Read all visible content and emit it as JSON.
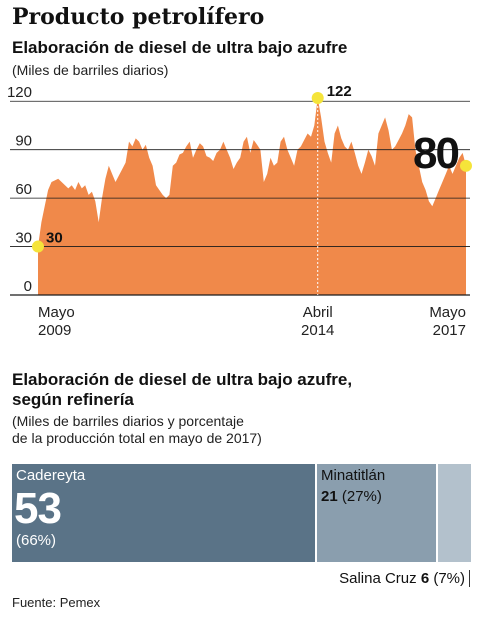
{
  "title": "Producto petrolífero",
  "chart1": {
    "title": "Elaboración de diesel de ultra bajo azufre",
    "subtitle": "(Miles de barriles diarios)"
  },
  "chart2": {
    "title_line1": "Elaboración de diesel de ultra bajo azufre,",
    "title_line2": "según refinería",
    "subtitle_line1": "(Miles de barriles diarios y porcentaje",
    "subtitle_line2": "de la producción total en mayo de 2017)"
  },
  "source": "Fuente: Pemex",
  "colors": {
    "area": "#f0894a",
    "refinery_dark": "#5a7387",
    "refinery_mid": "#8a9eae",
    "refinery_light": "#b3c1cc",
    "marker": "#f5e43a"
  },
  "chart_data": [
    {
      "type": "area",
      "title": "Elaboración de diesel de ultra bajo azufre",
      "ylabel": "(Miles de barriles diarios)",
      "ylim": [
        0,
        122
      ],
      "yticks": [
        0,
        30,
        60,
        90,
        120
      ],
      "x_ticks": [
        {
          "line1": "Mayo",
          "line2": "2009",
          "align": "start"
        },
        {
          "line1": "Abril",
          "line2": "2014",
          "align": "middle"
        },
        {
          "line1": "Mayo",
          "line2": "2017",
          "align": "end"
        }
      ],
      "annotations": [
        {
          "label": "30",
          "value": 30,
          "at": "May 2009"
        },
        {
          "label": "122",
          "value": 122,
          "at": "Apr 2014"
        },
        {
          "label": "80",
          "value": 80,
          "at": "May 2017"
        }
      ],
      "start": "2009-05",
      "end": "2017-05",
      "values": [
        30,
        45,
        55,
        65,
        70,
        71,
        72,
        70,
        68,
        66,
        68,
        65,
        70,
        66,
        68,
        62,
        64,
        58,
        45,
        60,
        72,
        80,
        75,
        70,
        74,
        78,
        82,
        95,
        92,
        97,
        95,
        90,
        93,
        85,
        80,
        68,
        65,
        62,
        60,
        62,
        80,
        82,
        87,
        88,
        92,
        95,
        85,
        90,
        94,
        92,
        86,
        85,
        83,
        88,
        90,
        95,
        90,
        85,
        78,
        82,
        85,
        95,
        98,
        88,
        96,
        93,
        90,
        70,
        75,
        85,
        80,
        82,
        95,
        98,
        90,
        85,
        80,
        90,
        92,
        96,
        100,
        98,
        105,
        122,
        110,
        95,
        88,
        82,
        100,
        105,
        97,
        92,
        90,
        95,
        88,
        80,
        75,
        82,
        90,
        86,
        80,
        100,
        105,
        110,
        102,
        90,
        92,
        96,
        100,
        105,
        112,
        110,
        90,
        80,
        70,
        65,
        58,
        55,
        60,
        65,
        70,
        75,
        80,
        75,
        80,
        85,
        88,
        80
      ],
      "grid": true
    },
    {
      "type": "bar",
      "orientation": "horizontal-stacked",
      "categories": [
        "Cadereyta",
        "Minatitlán",
        "Salina Cruz"
      ],
      "values": [
        53,
        21,
        6
      ],
      "percent_labels": [
        "(66%)",
        "(27%)",
        "(7%)"
      ],
      "value_labels": [
        "53",
        "21",
        "6"
      ]
    }
  ]
}
